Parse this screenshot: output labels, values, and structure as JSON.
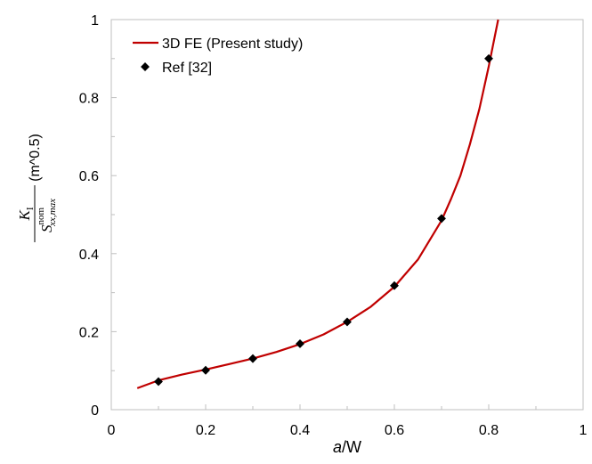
{
  "chart_data": {
    "type": "line",
    "xlim": [
      0,
      1
    ],
    "ylim": [
      0,
      1
    ],
    "x_ticks": [
      "0",
      "0.2",
      "0.4",
      "0.6",
      "0.8",
      "1"
    ],
    "y_ticks": [
      "0",
      "0.2",
      "0.4",
      "0.6",
      "0.8",
      "1"
    ],
    "xlabel": {
      "italic": "a",
      "rest": "/W"
    },
    "ylabel": {
      "numerator": "K",
      "numerator_sub": "I",
      "denominator": "S",
      "denominator_sup": "nom",
      "denominator_sub": "xx,max",
      "unit": "(m^0.5)"
    },
    "grid": false,
    "legend_position": "top-left",
    "series": [
      {
        "name": "3D FE (Present study)",
        "kind": "line",
        "color": "#c00000",
        "x": [
          0.055,
          0.1,
          0.15,
          0.2,
          0.25,
          0.3,
          0.35,
          0.4,
          0.45,
          0.5,
          0.55,
          0.6,
          0.65,
          0.7,
          0.72,
          0.74,
          0.76,
          0.78,
          0.8,
          0.81,
          0.82
        ],
        "y": [
          0.055,
          0.075,
          0.09,
          0.103,
          0.117,
          0.131,
          0.148,
          0.168,
          0.193,
          0.225,
          0.264,
          0.315,
          0.385,
          0.485,
          0.54,
          0.6,
          0.68,
          0.77,
          0.88,
          0.94,
          1.0
        ]
      },
      {
        "name": "Ref [32]",
        "kind": "scatter",
        "color": "#000000",
        "x": [
          0.1,
          0.2,
          0.3,
          0.4,
          0.5,
          0.6,
          0.7,
          0.8
        ],
        "y": [
          0.072,
          0.101,
          0.131,
          0.169,
          0.225,
          0.318,
          0.49,
          0.9
        ]
      }
    ]
  }
}
